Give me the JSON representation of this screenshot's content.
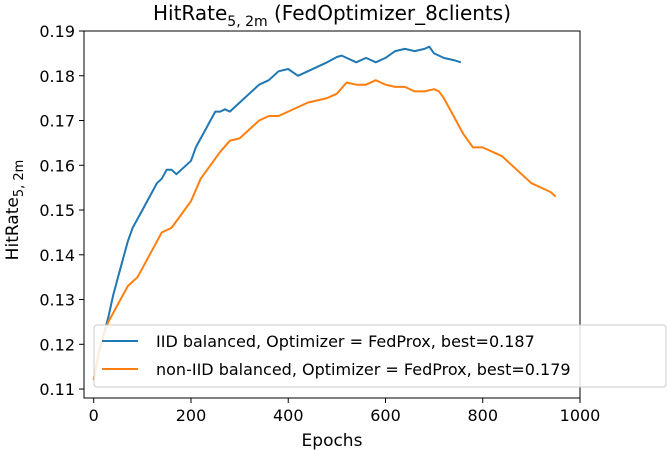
{
  "chart_data": {
    "type": "line",
    "title_main": "HitRate",
    "title_sub": "5, 2m",
    "title_rest": " (FedOptimizer_8clients)",
    "xlabel": "Epochs",
    "ylabel_main": "HitRate",
    "ylabel_sub": "5, 2m",
    "xlim": [
      -20,
      1000
    ],
    "ylim": [
      0.108,
      0.19
    ],
    "xticks": [
      0,
      200,
      400,
      600,
      800,
      1000
    ],
    "xtick_labels": [
      "0",
      "200",
      "400",
      "600",
      "800",
      "1000"
    ],
    "yticks": [
      0.11,
      0.12,
      0.13,
      0.14,
      0.15,
      0.16,
      0.17,
      0.18,
      0.19
    ],
    "ytick_labels": [
      "0.11",
      "0.12",
      "0.13",
      "0.14",
      "0.15",
      "0.16",
      "0.17",
      "0.18",
      "0.19"
    ],
    "grid": false,
    "legend_position": "lower-left",
    "series": [
      {
        "name": "IID balanced, Optimizer = FedProx, best=0.187",
        "color": "#1f77b4",
        "x": [
          0,
          10,
          20,
          30,
          40,
          50,
          60,
          70,
          80,
          90,
          100,
          110,
          120,
          130,
          140,
          150,
          160,
          170,
          180,
          190,
          200,
          210,
          220,
          230,
          240,
          250,
          260,
          270,
          280,
          290,
          300,
          320,
          340,
          360,
          380,
          400,
          420,
          440,
          460,
          480,
          500,
          510,
          520,
          540,
          560,
          580,
          600,
          620,
          640,
          660,
          680,
          690,
          700,
          720,
          740,
          755
        ],
        "y": [
          0.112,
          0.118,
          0.122,
          0.126,
          0.131,
          0.135,
          0.139,
          0.143,
          0.146,
          0.148,
          0.15,
          0.152,
          0.154,
          0.156,
          0.157,
          0.159,
          0.159,
          0.158,
          0.159,
          0.16,
          0.161,
          0.164,
          0.166,
          0.168,
          0.17,
          0.172,
          0.172,
          0.1725,
          0.172,
          0.173,
          0.174,
          0.176,
          0.178,
          0.179,
          0.181,
          0.1815,
          0.18,
          0.181,
          0.182,
          0.183,
          0.1842,
          0.1845,
          0.184,
          0.183,
          0.184,
          0.183,
          0.184,
          0.1855,
          0.186,
          0.1855,
          0.186,
          0.1865,
          0.185,
          0.184,
          0.1835,
          0.183
        ]
      },
      {
        "name": "non-IID balanced, Optimizer = FedProx, best=0.179",
        "color": "#ff7f0e",
        "x": [
          0,
          10,
          20,
          30,
          40,
          50,
          60,
          70,
          80,
          90,
          100,
          120,
          140,
          160,
          180,
          200,
          220,
          240,
          260,
          280,
          300,
          320,
          340,
          360,
          380,
          400,
          420,
          440,
          460,
          480,
          500,
          520,
          540,
          560,
          580,
          600,
          620,
          640,
          660,
          680,
          700,
          710,
          720,
          740,
          760,
          780,
          800,
          820,
          840,
          860,
          880,
          900,
          920,
          940,
          950
        ],
        "y": [
          0.112,
          0.118,
          0.122,
          0.125,
          0.127,
          0.129,
          0.131,
          0.133,
          0.134,
          0.135,
          0.137,
          0.141,
          0.145,
          0.146,
          0.149,
          0.152,
          0.157,
          0.16,
          0.163,
          0.1655,
          0.166,
          0.168,
          0.17,
          0.171,
          0.171,
          0.172,
          0.173,
          0.174,
          0.1745,
          0.175,
          0.176,
          0.1785,
          0.178,
          0.178,
          0.179,
          0.178,
          0.1775,
          0.1775,
          0.1765,
          0.1765,
          0.177,
          0.1765,
          0.175,
          0.171,
          0.167,
          0.164,
          0.164,
          0.163,
          0.162,
          0.16,
          0.158,
          0.156,
          0.155,
          0.154,
          0.153
        ]
      }
    ]
  }
}
